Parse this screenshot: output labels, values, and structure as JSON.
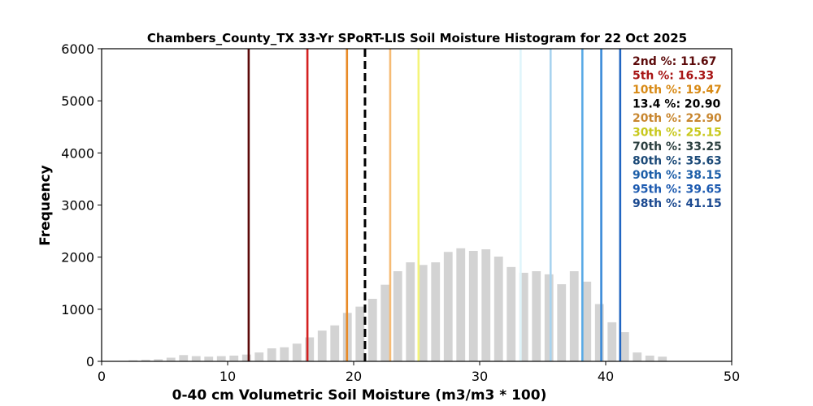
{
  "chart_data": {
    "type": "bar",
    "title": "Chambers_County_TX 33-Yr SPoRT-LIS Soil Moisture Histogram for 22 Oct 2025",
    "xlabel": "0-40 cm Volumetric Soil Moisture (m3/m3 * 100)",
    "ylabel": "Frequency",
    "xlim": [
      0,
      50
    ],
    "ylim": [
      0,
      6000
    ],
    "xticks": [
      0,
      10,
      20,
      30,
      40,
      50
    ],
    "yticks": [
      0,
      1000,
      2000,
      3000,
      4000,
      5000,
      6000
    ],
    "bar_color": "#d3d3d3",
    "bars": {
      "x": [
        2.5,
        3.5,
        4.5,
        5.5,
        6.5,
        7.5,
        8.5,
        9.5,
        10.5,
        11.5,
        12.5,
        13.5,
        14.5,
        15.5,
        16.5,
        17.5,
        18.5,
        19.5,
        20.5,
        21.5,
        22.5,
        23.5,
        24.5,
        25.5,
        26.5,
        27.5,
        28.5,
        29.5,
        30.5,
        31.5,
        32.5,
        33.5,
        34.5,
        35.5,
        36.5,
        37.5,
        38.5,
        39.5,
        40.5,
        41.5,
        42.5,
        43.5,
        44.5
      ],
      "values": [
        20,
        30,
        40,
        70,
        120,
        100,
        90,
        100,
        110,
        130,
        170,
        250,
        270,
        340,
        460,
        590,
        690,
        930,
        1050,
        1200,
        1470,
        1730,
        1900,
        1850,
        1900,
        2100,
        2170,
        2120,
        2150,
        2010,
        1810,
        1700,
        1730,
        1670,
        1480,
        1730,
        1530,
        1100,
        750,
        560,
        170,
        110,
        90
      ]
    },
    "percentile_lines": [
      {
        "label": "2nd %: 11.67",
        "value": 11.67,
        "color": "#5c0a0a",
        "dashed": false
      },
      {
        "label": "5th %: 16.33",
        "value": 16.33,
        "color": "#d42020",
        "dashed": false
      },
      {
        "label": "10th %: 19.47",
        "value": 19.47,
        "color": "#e88a26",
        "dashed": false
      },
      {
        "label": "13.4 %: 20.90",
        "value": 20.9,
        "color": "#000000",
        "dashed": true
      },
      {
        "label": "20th %: 22.90",
        "value": 22.9,
        "color": "#f6bb74",
        "dashed": false
      },
      {
        "label": "30th %: 25.15",
        "value": 25.15,
        "color": "#f4f47a",
        "dashed": false
      },
      {
        "label": "70th %: 33.25",
        "value": 33.25,
        "color": "#dff5fb",
        "dashed": false
      },
      {
        "label": "80th %: 35.63",
        "value": 35.63,
        "color": "#a8d3ef",
        "dashed": false
      },
      {
        "label": "90th %: 38.15",
        "value": 38.15,
        "color": "#5aaae6",
        "dashed": false
      },
      {
        "label": "95th %: 39.65",
        "value": 39.65,
        "color": "#3a8ad8",
        "dashed": false
      },
      {
        "label": "98th %: 41.15",
        "value": 41.15,
        "color": "#2266c2",
        "dashed": false
      }
    ],
    "legend_text_colors": [
      "#5c0a0a",
      "#a81515",
      "#d88a16",
      "#000000",
      "#c8862e",
      "#c8c81c",
      "#2c4040",
      "#1c4a78",
      "#1c5ea8",
      "#1c5ab0",
      "#1c4a90"
    ],
    "legend_placement": "top-right",
    "grid": false
  }
}
